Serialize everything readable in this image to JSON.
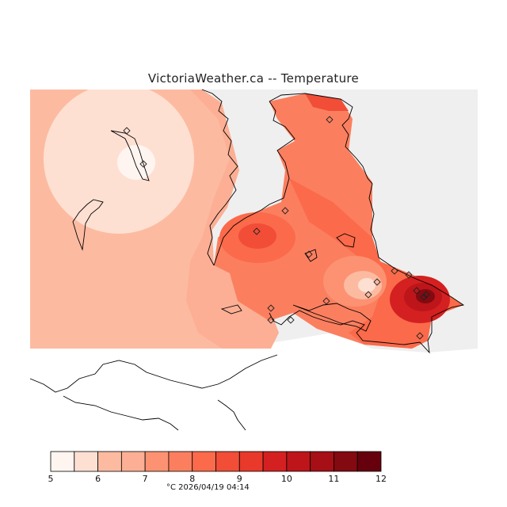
{
  "title": "VictoriaWeather.ca -- Temperature",
  "colorbar": {
    "colors": [
      "#fff5f0",
      "#fee0d2",
      "#fcbba1",
      "#fcaf94",
      "#fc9272",
      "#fb7f5f",
      "#fb6a4a",
      "#f14d37",
      "#e8392a",
      "#d42020",
      "#bd151a",
      "#a50f15",
      "#830a10",
      "#67000d"
    ],
    "tick_labels": [
      "5",
      "6",
      "7",
      "8",
      "9",
      "10",
      "11",
      "12"
    ],
    "unit": "°C",
    "timestamp": "2026/04/19 04:14"
  },
  "legend_footer": "°C   2026/04/19 04:14",
  "map": {
    "land_color": "#efefef",
    "coastline_color": "#000000",
    "station_marker": "diamond-icon"
  }
}
